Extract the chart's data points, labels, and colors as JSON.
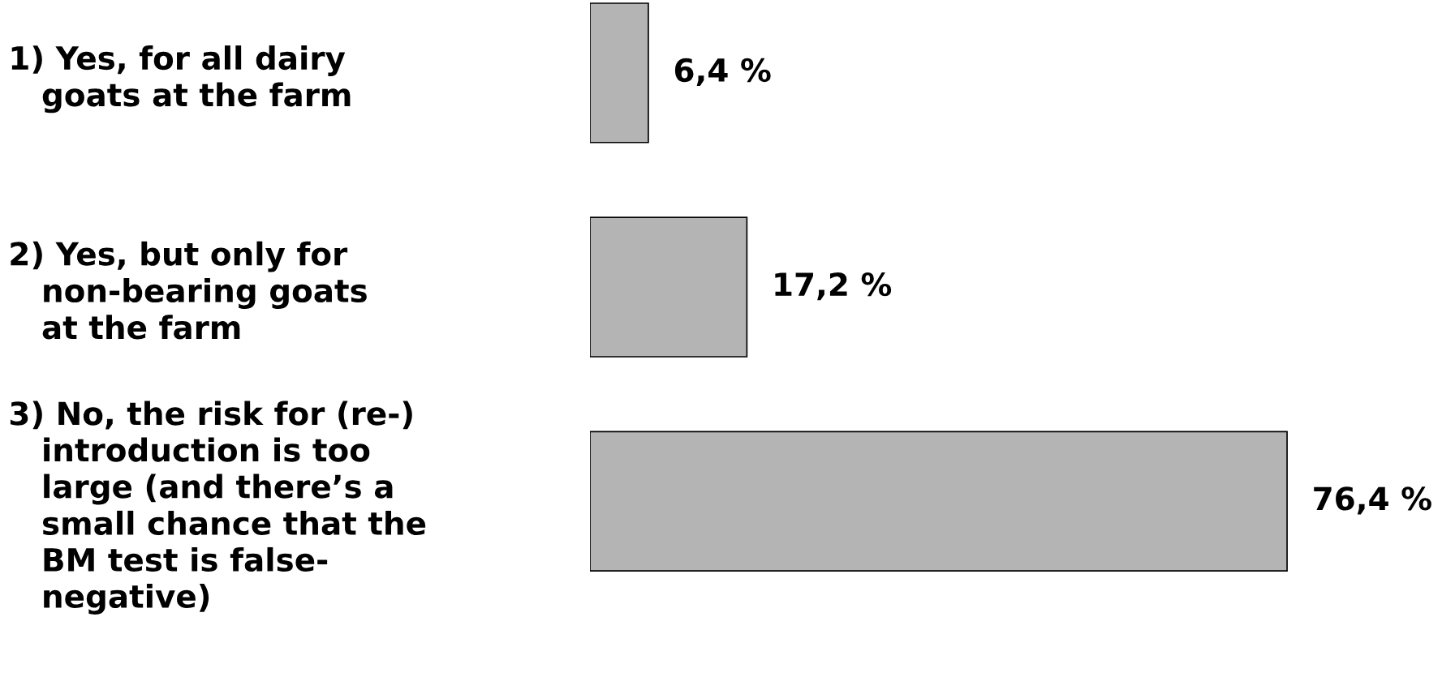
{
  "chart_data": {
    "type": "bar",
    "orientation": "horizontal",
    "categories": [
      "1) Yes, for all dairy\n   goats at the farm",
      "2) Yes, but only for\n   non-bearing goats\n   at the farm",
      "3) No, the risk for (re-)\n   introduction is too\n   large (and there’s a\n   small chance that the\n   BM test is false-\n   negative)"
    ],
    "values": [
      6.4,
      17.2,
      76.4
    ],
    "value_labels": [
      "6,4 %",
      "17,2 %",
      "76,4 %"
    ],
    "color": "#b4b4b4",
    "grid": false,
    "legend": false
  }
}
